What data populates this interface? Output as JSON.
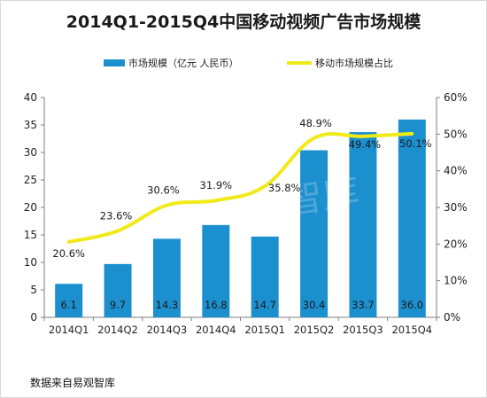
{
  "title": "2014Q1-2015Q4中国移动视频广告市场规模",
  "source": "数据来自易观智库",
  "watermark": "易观智库",
  "colors": {
    "bar": "#1c8fcf",
    "line": "#f0ea1a",
    "grid": "#d9d9d9",
    "axis": "#7f7f7f",
    "text": "#222222",
    "bar_label": "#1a1a1a",
    "line_label": "#1a1a1a"
  },
  "chart_data": {
    "type": "bar+line",
    "categories": [
      "2014Q1",
      "2014Q2",
      "2014Q3",
      "2014Q4",
      "2015Q1",
      "2015Q2",
      "2015Q3",
      "2015Q4"
    ],
    "series": [
      {
        "name": "市场规模（亿元 人民币）",
        "type": "bar",
        "axis": "left",
        "values": [
          6.1,
          9.7,
          14.3,
          16.8,
          14.7,
          30.4,
          33.7,
          36.0
        ],
        "labels": [
          "6.1",
          "9.7",
          "14.3",
          "16.8",
          "14.7",
          "30.4",
          "33.7",
          "36.0"
        ]
      },
      {
        "name": "移动市场规模占比",
        "type": "line",
        "axis": "right",
        "values": [
          20.6,
          23.6,
          30.6,
          31.9,
          35.8,
          48.9,
          49.4,
          50.1
        ],
        "labels": [
          "20.6%",
          "23.6%",
          "30.6%",
          "31.9%",
          "35.8%",
          "48.9%",
          "49.4%",
          "50.1%"
        ]
      }
    ],
    "y_left": {
      "ylim": [
        0,
        40
      ],
      "ticks": [
        0,
        5,
        10,
        15,
        20,
        25,
        30,
        35,
        40
      ]
    },
    "y_right": {
      "ylim": [
        0,
        60
      ],
      "ticks": [
        "0%",
        "10%",
        "20%",
        "30%",
        "40%",
        "50%",
        "60%"
      ]
    },
    "legend": "top",
    "grid": false
  }
}
